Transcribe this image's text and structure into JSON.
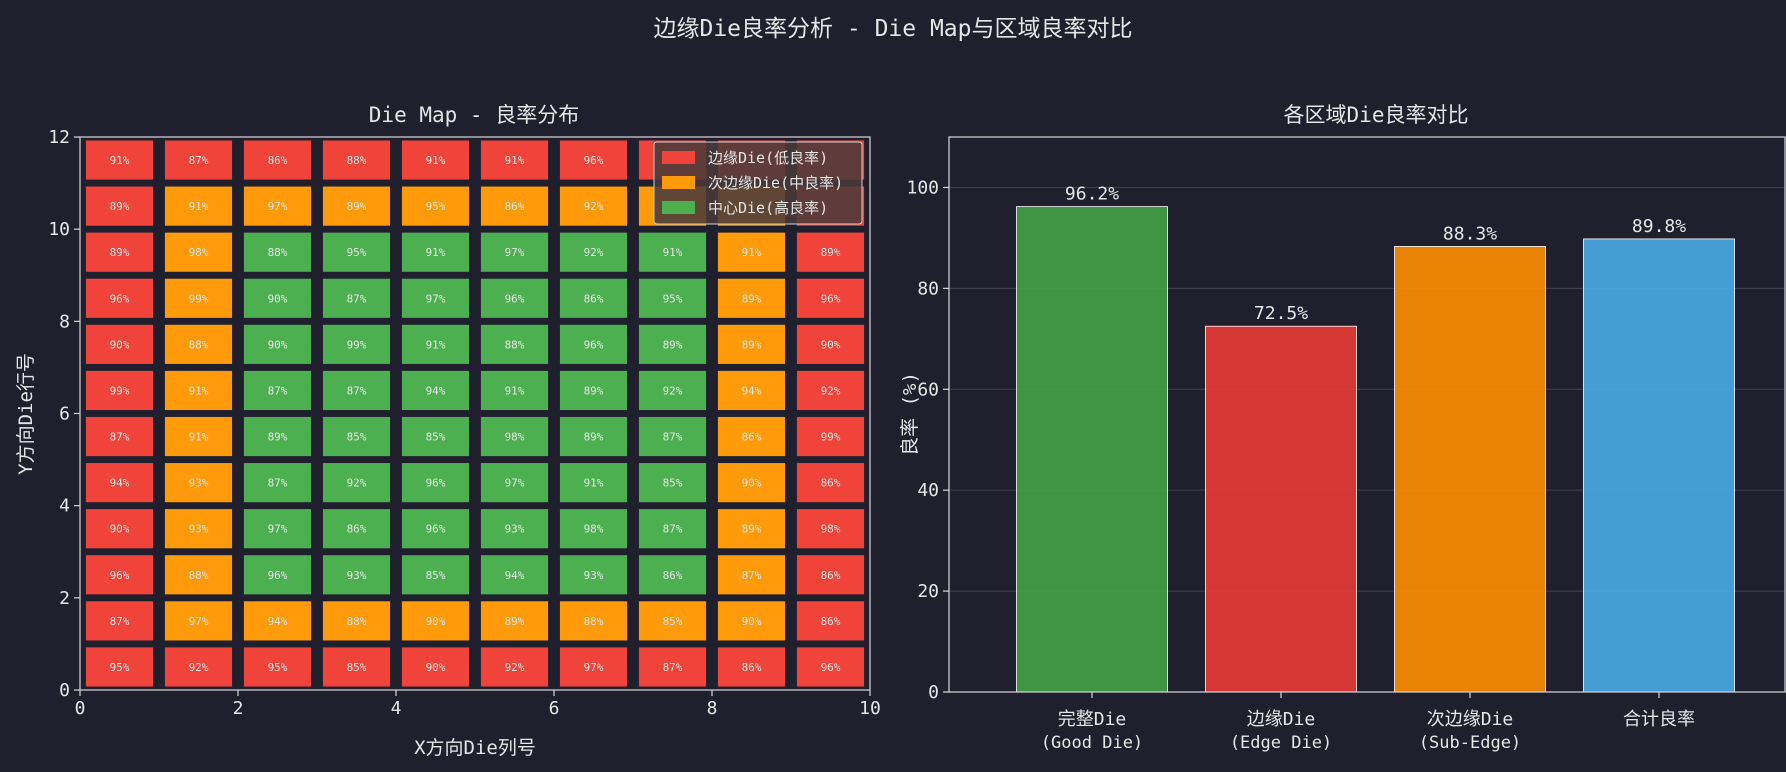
{
  "figure_title": "边缘Die良率分析 - Die Map与区域良率对比",
  "colors": {
    "background": "#1f1f2e",
    "edge": "#f0433a",
    "sub_edge": "#ff9a0a",
    "center": "#4caf50",
    "bar_good": "#43a047",
    "bar_edge": "#e53935",
    "bar_sub_edge": "#fb8c00",
    "bar_total": "#4aa8e3",
    "text": "#e6e6e6"
  },
  "chart_data": [
    {
      "type": "heatmap",
      "title": "Die Map - 良率分布",
      "xlabel": "X方向Die列号",
      "ylabel": "Y方向Die行号",
      "xlim": [
        0,
        10
      ],
      "ylim": [
        0,
        12
      ],
      "xticks": [
        "0",
        "2",
        "4",
        "6",
        "8",
        "10"
      ],
      "yticks": [
        "0",
        "2",
        "4",
        "6",
        "8",
        "10",
        "12"
      ],
      "legend": {
        "position": "top-right",
        "entries": [
          {
            "label": "边缘Die(低良率)",
            "category": "E"
          },
          {
            "label": "次边缘Die(中良率)",
            "category": "S"
          },
          {
            "label": "中心Die(高良率)",
            "category": "C"
          }
        ]
      },
      "rows_top_to_bottom": [
        {
          "cat": [
            "E",
            "E",
            "E",
            "E",
            "E",
            "E",
            "E",
            "E",
            "E",
            "E"
          ],
          "val": [
            "91%",
            "87%",
            "86%",
            "88%",
            "91%",
            "91%",
            "96%",
            "",
            "",
            ""
          ]
        },
        {
          "cat": [
            "E",
            "S",
            "S",
            "S",
            "S",
            "S",
            "S",
            "S",
            "S",
            "E"
          ],
          "val": [
            "89%",
            "91%",
            "97%",
            "89%",
            "95%",
            "86%",
            "92%",
            "",
            "",
            ""
          ]
        },
        {
          "cat": [
            "E",
            "S",
            "C",
            "C",
            "C",
            "C",
            "C",
            "C",
            "S",
            "E"
          ],
          "val": [
            "89%",
            "98%",
            "88%",
            "95%",
            "91%",
            "97%",
            "92%",
            "91%",
            "91%",
            "89%"
          ]
        },
        {
          "cat": [
            "E",
            "S",
            "C",
            "C",
            "C",
            "C",
            "C",
            "C",
            "S",
            "E"
          ],
          "val": [
            "96%",
            "99%",
            "90%",
            "87%",
            "97%",
            "96%",
            "86%",
            "95%",
            "89%",
            "96%"
          ]
        },
        {
          "cat": [
            "E",
            "S",
            "C",
            "C",
            "C",
            "C",
            "C",
            "C",
            "S",
            "E"
          ],
          "val": [
            "90%",
            "88%",
            "90%",
            "99%",
            "91%",
            "88%",
            "96%",
            "89%",
            "89%",
            "90%"
          ]
        },
        {
          "cat": [
            "E",
            "S",
            "C",
            "C",
            "C",
            "C",
            "C",
            "C",
            "S",
            "E"
          ],
          "val": [
            "99%",
            "91%",
            "87%",
            "87%",
            "94%",
            "91%",
            "89%",
            "92%",
            "94%",
            "92%"
          ]
        },
        {
          "cat": [
            "E",
            "S",
            "C",
            "C",
            "C",
            "C",
            "C",
            "C",
            "S",
            "E"
          ],
          "val": [
            "87%",
            "91%",
            "89%",
            "85%",
            "85%",
            "98%",
            "89%",
            "87%",
            "86%",
            "99%"
          ]
        },
        {
          "cat": [
            "E",
            "S",
            "C",
            "C",
            "C",
            "C",
            "C",
            "C",
            "S",
            "E"
          ],
          "val": [
            "94%",
            "93%",
            "87%",
            "92%",
            "96%",
            "97%",
            "91%",
            "85%",
            "90%",
            "86%"
          ]
        },
        {
          "cat": [
            "E",
            "S",
            "C",
            "C",
            "C",
            "C",
            "C",
            "C",
            "S",
            "E"
          ],
          "val": [
            "90%",
            "93%",
            "97%",
            "86%",
            "96%",
            "93%",
            "98%",
            "87%",
            "89%",
            "98%"
          ]
        },
        {
          "cat": [
            "E",
            "S",
            "C",
            "C",
            "C",
            "C",
            "C",
            "C",
            "S",
            "E"
          ],
          "val": [
            "96%",
            "88%",
            "96%",
            "93%",
            "85%",
            "94%",
            "93%",
            "86%",
            "87%",
            "86%"
          ]
        },
        {
          "cat": [
            "E",
            "S",
            "S",
            "S",
            "S",
            "S",
            "S",
            "S",
            "S",
            "E"
          ],
          "val": [
            "87%",
            "97%",
            "94%",
            "88%",
            "90%",
            "89%",
            "88%",
            "85%",
            "90%",
            "86%"
          ]
        },
        {
          "cat": [
            "E",
            "E",
            "E",
            "E",
            "E",
            "E",
            "E",
            "E",
            "E",
            "E"
          ],
          "val": [
            "95%",
            "92%",
            "95%",
            "85%",
            "90%",
            "92%",
            "97%",
            "87%",
            "86%",
            "96%"
          ]
        }
      ]
    },
    {
      "type": "bar",
      "title": "各区域Die良率对比",
      "xlabel": "",
      "ylabel": "良率 (%)",
      "ylim": [
        0,
        110
      ],
      "yticks": [
        "0",
        "20",
        "40",
        "60",
        "80",
        "100"
      ],
      "grid": true,
      "categories": [
        {
          "line1": "完整Die",
          "line2": "(Good Die)"
        },
        {
          "line1": "边缘Die",
          "line2": "(Edge Die)"
        },
        {
          "line1": "次边缘Die",
          "line2": "(Sub-Edge)"
        },
        {
          "line1": "合计良率",
          "line2": ""
        }
      ],
      "values": [
        96.2,
        72.5,
        88.3,
        89.8
      ],
      "value_labels": [
        "96.2%",
        "72.5%",
        "88.3%",
        "89.8%"
      ]
    }
  ]
}
